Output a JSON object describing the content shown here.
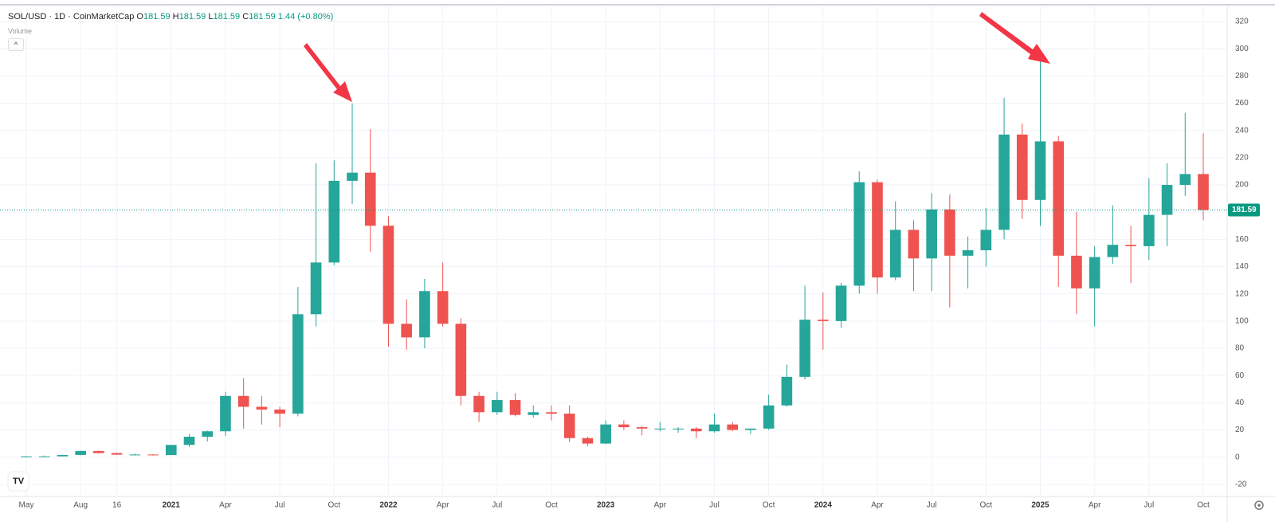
{
  "header": {
    "symbol": "SOL/USD · 1D · CoinMarketCap",
    "ohlc": [
      {
        "label": "O",
        "value": 181.59
      },
      {
        "label": "H",
        "value": 181.59
      },
      {
        "label": "L",
        "value": 181.59
      },
      {
        "label": "C",
        "value": 181.59
      }
    ],
    "change": "1.44 (+0.80%)",
    "volume": "Volume"
  },
  "chart_data": {
    "type": "candlestick",
    "categories": [
      "May",
      null,
      null,
      "Aug",
      null,
      "16",
      null,
      null,
      "2021",
      null,
      null,
      "Apr",
      null,
      null,
      "Jul",
      null,
      null,
      "Oct",
      null,
      null,
      "2022",
      null,
      null,
      "Apr",
      null,
      null,
      "Jul",
      null,
      null,
      "Oct",
      null,
      null,
      "2023",
      null,
      null,
      "Apr",
      null,
      null,
      "Jul",
      null,
      null,
      "Oct",
      null,
      null,
      "2024",
      null,
      null,
      "Apr",
      null,
      null,
      "Jul",
      null,
      null,
      "Oct",
      null,
      null,
      "2025",
      null,
      null,
      "Apr",
      null,
      null,
      "Jul",
      null,
      null,
      "Oct"
    ],
    "open": [
      0.6,
      0.6,
      0.6,
      1.6,
      4.5,
      3.0,
      1.8,
      1.9,
      1.5,
      9.0,
      15,
      19,
      45,
      37,
      35,
      32,
      105,
      143,
      203,
      209,
      170,
      98,
      88,
      122,
      98,
      45,
      33,
      42,
      31,
      33,
      32,
      14,
      10,
      24,
      22,
      21,
      21,
      21,
      19,
      24,
      20,
      21,
      38,
      59,
      101,
      100,
      126,
      202,
      132,
      167,
      146,
      182,
      148,
      152,
      167,
      237,
      189,
      232,
      148,
      124,
      147,
      156,
      155,
      178,
      200,
      208
    ],
    "high": [
      0.9,
      1.2,
      1.6,
      4.9,
      4.9,
      3.4,
      2.7,
      2.2,
      9.0,
      17,
      19.5,
      48,
      58,
      45,
      37,
      125,
      216,
      218,
      260,
      241,
      177,
      116,
      131,
      143,
      102,
      48,
      48,
      47,
      38,
      38,
      38,
      15,
      27,
      27,
      23,
      26,
      22,
      22,
      32,
      26,
      21,
      46,
      68,
      126,
      121,
      128,
      210,
      204,
      188,
      174,
      194,
      193,
      162,
      183,
      264,
      245,
      295,
      236,
      180,
      155,
      185,
      170,
      205,
      216,
      253,
      238
    ],
    "low": [
      0.5,
      0.5,
      0.6,
      1.4,
      2.6,
      1.7,
      1.6,
      1.2,
      1.5,
      7.5,
      11.5,
      15.5,
      21,
      24,
      22,
      30,
      96,
      141,
      186,
      151,
      81,
      79,
      80,
      96,
      38,
      26,
      31,
      30,
      29,
      27,
      11,
      8,
      9.5,
      20,
      16,
      19,
      18,
      14,
      18,
      19,
      17,
      20,
      37,
      57,
      79,
      95,
      120,
      120,
      130,
      122,
      122,
      110,
      124,
      140,
      160,
      175,
      170,
      125,
      105,
      96,
      142,
      128,
      145,
      155,
      192,
      174
    ],
    "close": [
      0.6,
      0.6,
      1.6,
      4.5,
      3.0,
      1.8,
      1.9,
      1.5,
      9.0,
      15,
      19,
      45,
      37,
      35,
      32,
      105,
      143,
      203,
      209,
      170,
      98,
      88,
      122,
      98,
      45,
      33,
      42,
      31,
      33,
      32,
      14,
      10,
      24,
      22,
      21,
      21,
      21,
      19,
      24,
      20,
      21,
      38,
      59,
      101,
      100,
      126,
      202,
      132,
      167,
      146,
      182,
      148,
      152,
      167,
      237,
      189,
      232,
      148,
      124,
      147,
      156,
      155,
      178,
      200,
      208,
      181.59
    ],
    "up_color": "#26a69a",
    "down_color": "#ef5350",
    "last_price_color": "#089981",
    "ylim": [
      -33,
      330
    ],
    "yticks": [
      -20,
      0,
      20,
      40,
      60,
      80,
      100,
      120,
      140,
      160,
      180,
      200,
      220,
      240,
      260,
      280,
      300,
      320
    ],
    "grid": true
  }
}
